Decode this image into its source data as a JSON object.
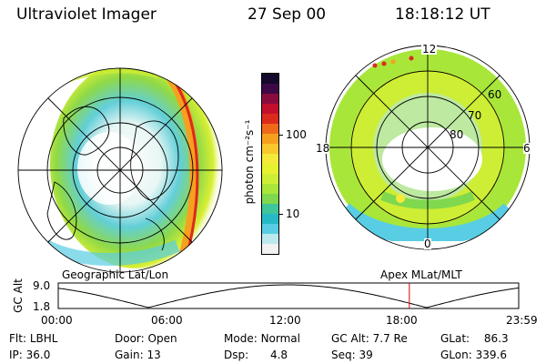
{
  "header": {
    "instrument": "Ultraviolet Imager",
    "date": "27 Sep 00",
    "time": "18:18:12 UT"
  },
  "left_panel": {
    "caption": "Geographic Lat/Lon"
  },
  "right_panel": {
    "caption": "Apex  MLat/MLT",
    "mlt_labels": [
      "12",
      "18",
      "6",
      "0"
    ],
    "lat_labels": [
      "60",
      "70",
      "80"
    ]
  },
  "colorbar": {
    "unit_label": "photon cm⁻²s⁻¹",
    "ticks": [
      "100",
      "10"
    ],
    "colors": [
      "#f2f2f2",
      "#bde9ee",
      "#58cde3",
      "#27b9c6",
      "#3fc69a",
      "#7fd84e",
      "#a8e63a",
      "#cdee35",
      "#e6f230",
      "#f5e93a",
      "#f8c82d",
      "#f6a01f",
      "#ee6a1a",
      "#dc2a1d",
      "#c2102c",
      "#8a0c3e",
      "#3d0846",
      "#14082c"
    ]
  },
  "orbit_plot": {
    "ylabel": "GC Alt",
    "yticks": [
      "9.0",
      "1.8"
    ],
    "xticks": [
      "00:00",
      "06:00",
      "12:00",
      "18:00",
      "23:59"
    ],
    "marker_time_h": 18.3
  },
  "info": [
    {
      "label": "Flt:",
      "value": "LBHL"
    },
    {
      "label": "Door:",
      "value": "Open"
    },
    {
      "label": "Mode:",
      "value": "Normal"
    },
    {
      "label": "GC Alt:",
      "value": "7.7 Re"
    },
    {
      "label": "GLat:",
      "value": "86.3"
    },
    {
      "label": "IP:",
      "value": "36.0"
    },
    {
      "label": "Gain:",
      "value": "13"
    },
    {
      "label": "Dsp:",
      "value": "4.8"
    },
    {
      "label": "Seq:",
      "value": "39"
    },
    {
      "label": "GLon:",
      "value": "339.6"
    }
  ]
}
